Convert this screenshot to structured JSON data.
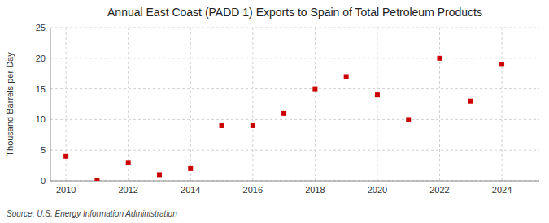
{
  "chart_data": {
    "type": "scatter",
    "title": "Annual East Coast (PADD 1) Exports to Spain of Total Petroleum Products",
    "ylabel": "Thousand Barrels per Day",
    "source": "Source: U.S. Energy Information Administration",
    "x": [
      2010,
      2011,
      2012,
      2013,
      2014,
      2015,
      2016,
      2017,
      2018,
      2019,
      2020,
      2021,
      2022,
      2023,
      2024
    ],
    "values": [
      4.0,
      0.1,
      3.0,
      1.0,
      2.0,
      9.0,
      9.0,
      11.0,
      15.0,
      17.0,
      14.0,
      10.0,
      20.0,
      13.0,
      19.0
    ],
    "color": "#cc0000",
    "marker": "square",
    "xlim": [
      2009.5,
      2025.2
    ],
    "ylim": [
      0,
      25
    ],
    "xticks": [
      2010,
      2012,
      2014,
      2016,
      2018,
      2020,
      2022,
      2024
    ],
    "yticks": [
      0,
      5,
      10,
      15,
      20,
      25
    ],
    "grid": true
  }
}
